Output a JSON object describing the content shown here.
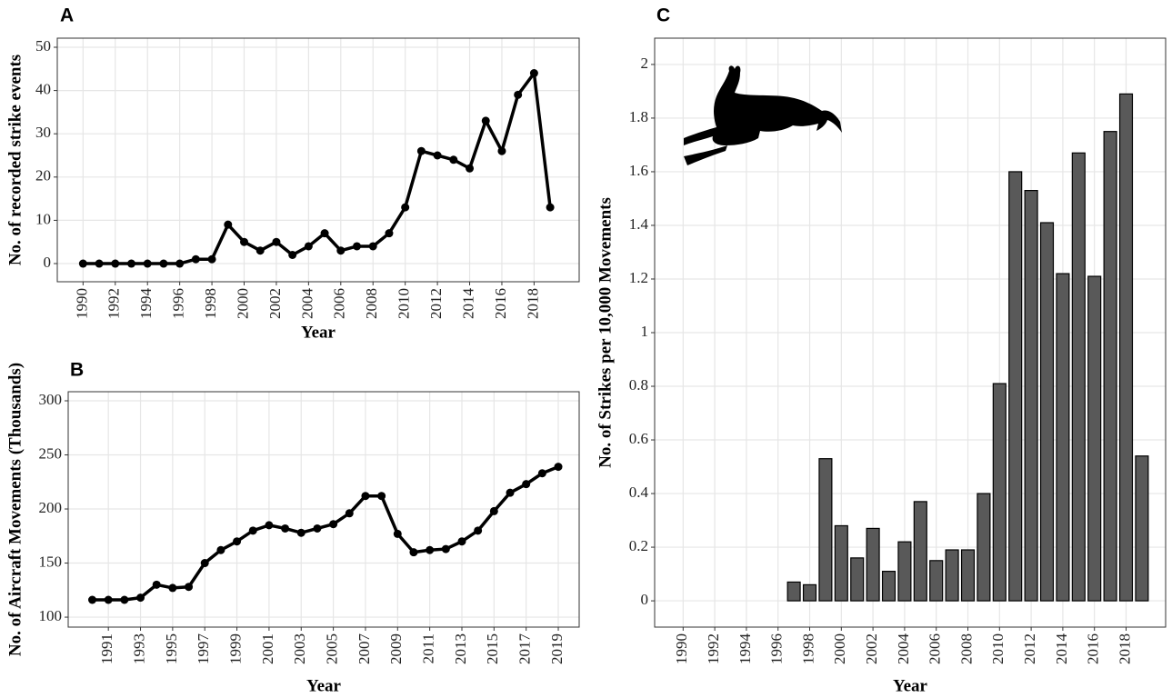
{
  "chart_data": [
    {
      "type": "line",
      "title": "A",
      "xlabel": "Year",
      "ylabel": "No. of recorded strike events",
      "color": "#000000",
      "grid": true,
      "x": [
        1990,
        1991,
        1992,
        1993,
        1994,
        1995,
        1996,
        1997,
        1998,
        1999,
        2000,
        2001,
        2002,
        2003,
        2004,
        2005,
        2006,
        2007,
        2008,
        2009,
        2010,
        2011,
        2012,
        2013,
        2014,
        2015,
        2016,
        2017,
        2018,
        2019
      ],
      "values": [
        0,
        0,
        0,
        0,
        0,
        0,
        0,
        1,
        1,
        9,
        5,
        3,
        5,
        2,
        4,
        7,
        3,
        4,
        4,
        7,
        13,
        26,
        25,
        24,
        22,
        33,
        26,
        39,
        44,
        13
      ],
      "xlim": [
        1988.4,
        2020.8
      ],
      "ylim": [
        -4.2,
        52.1
      ],
      "xticks": [
        1990,
        1992,
        1994,
        1996,
        1998,
        2000,
        2002,
        2004,
        2006,
        2008,
        2010,
        2012,
        2014,
        2016,
        2018
      ],
      "yticks": [
        0,
        10,
        20,
        30,
        40,
        50
      ]
    },
    {
      "type": "line",
      "title": "B",
      "xlabel": "Year",
      "ylabel": "No. of Aircraft Movements (Thousands)",
      "color": "#000000",
      "grid": true,
      "x": [
        1990,
        1991,
        1992,
        1993,
        1994,
        1995,
        1996,
        1997,
        1998,
        1999,
        2000,
        2001,
        2002,
        2003,
        2004,
        2005,
        2006,
        2007,
        2008,
        2009,
        2010,
        2011,
        2012,
        2013,
        2014,
        2015,
        2016,
        2017,
        2018,
        2019
      ],
      "values": [
        116,
        116,
        116,
        118,
        130,
        127,
        128,
        150,
        162,
        170,
        180,
        185,
        182,
        178,
        182,
        186,
        196,
        212,
        212,
        177,
        160,
        162,
        163,
        170,
        180,
        198,
        215,
        223,
        233,
        239
      ],
      "xlim": [
        1988.5,
        2020.3
      ],
      "ylim": [
        90.8,
        308.4
      ],
      "xticks": [
        1991,
        1993,
        1995,
        1997,
        1999,
        2001,
        2003,
        2005,
        2007,
        2009,
        2011,
        2013,
        2015,
        2017,
        2019
      ],
      "yticks": [
        100,
        150,
        200,
        250,
        300
      ]
    },
    {
      "type": "bar",
      "title": "C",
      "xlabel": "Year",
      "ylabel": "No. of Strikes per 10,000 Movements",
      "color": "#595959",
      "grid": true,
      "x": [
        1990,
        1991,
        1992,
        1993,
        1994,
        1995,
        1996,
        1997,
        1998,
        1999,
        2000,
        2001,
        2002,
        2003,
        2004,
        2005,
        2006,
        2007,
        2008,
        2009,
        2010,
        2011,
        2012,
        2013,
        2014,
        2015,
        2016,
        2017,
        2018,
        2019
      ],
      "values": [
        0,
        0,
        0,
        0,
        0,
        0,
        0,
        0.07,
        0.06,
        0.53,
        0.28,
        0.16,
        0.27,
        0.11,
        0.22,
        0.37,
        0.15,
        0.19,
        0.19,
        0.4,
        0.81,
        1.6,
        1.53,
        1.41,
        1.22,
        1.67,
        1.21,
        1.75,
        1.89,
        0.54
      ],
      "xlim": [
        1988.2,
        2020.5
      ],
      "ylim": [
        -0.098,
        2.098
      ],
      "xticks": [
        1990,
        1992,
        1994,
        1996,
        1998,
        2000,
        2002,
        2004,
        2006,
        2008,
        2010,
        2012,
        2014,
        2016,
        2018
      ],
      "yticks": [
        0,
        0.2,
        0.4,
        0.6,
        0.8,
        1,
        1.2,
        1.4,
        1.6,
        1.8,
        2
      ]
    }
  ]
}
